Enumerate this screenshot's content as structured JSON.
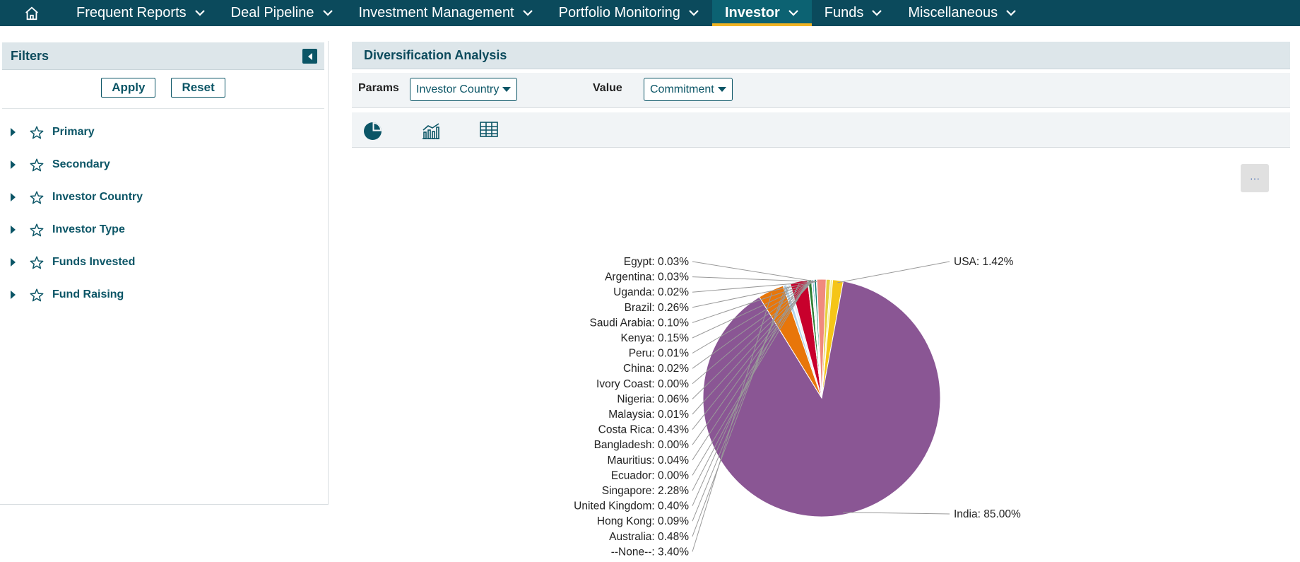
{
  "nav": {
    "items": [
      {
        "label": "Frequent Reports",
        "active": false
      },
      {
        "label": "Deal Pipeline",
        "active": false
      },
      {
        "label": "Investment Management",
        "active": false
      },
      {
        "label": "Portfolio Monitoring",
        "active": false
      },
      {
        "label": "Investor",
        "active": true
      },
      {
        "label": "Funds",
        "active": false
      },
      {
        "label": "Miscellaneous",
        "active": false
      }
    ]
  },
  "filters": {
    "title": "Filters",
    "apply_label": "Apply",
    "reset_label": "Reset",
    "items": [
      {
        "label": "Primary"
      },
      {
        "label": "Secondary"
      },
      {
        "label": "Investor Country"
      },
      {
        "label": "Investor Type"
      },
      {
        "label": "Funds Invested"
      },
      {
        "label": "Fund Raising"
      }
    ]
  },
  "analysis": {
    "title": "Diversification Analysis",
    "params_label": "Params",
    "params_value": "Investor Country",
    "value_label": "Value",
    "value_value": "Commitment",
    "menu_label": "···"
  },
  "colors": {
    "nav_bg": "#0b4a5c",
    "accent": "#f0b323",
    "brand_text": "#0b5566"
  },
  "chart_data": {
    "type": "pie",
    "title": "",
    "slices": [
      {
        "name": "USA",
        "label": "USA: 1.42%",
        "value": 1.42,
        "color": "#f5c518",
        "side": "right"
      },
      {
        "name": "India",
        "label": "India: 85.00%",
        "value": 85.0,
        "color": "#8a5694",
        "side": "right"
      },
      {
        "name": "--None--",
        "label": "--None--: 3.40%",
        "value": 3.4,
        "color": "#e8760a",
        "side": "left"
      },
      {
        "name": "Australia",
        "label": "Australia: 0.48%",
        "value": 0.48,
        "color": "#b4d4ea",
        "side": "left"
      },
      {
        "name": "Hong Kong",
        "label": "Hong Kong: 0.09%",
        "value": 0.09,
        "color": "#2b6cb0",
        "side": "left"
      },
      {
        "name": "United Kingdom",
        "label": "United Kingdom: 0.40%",
        "value": 0.4,
        "color": "#e4f0f8",
        "side": "left"
      },
      {
        "name": "Singapore",
        "label": "Singapore: 2.28%",
        "value": 2.28,
        "color": "#c8002c",
        "side": "left"
      },
      {
        "name": "Ecuador",
        "label": "Ecuador: 0.00%",
        "value": 0.0,
        "color": "#ff66aa",
        "side": "left"
      },
      {
        "name": "Mauritius",
        "label": "Mauritius: 0.04%",
        "value": 0.04,
        "color": "#f8b7c7",
        "side": "left"
      },
      {
        "name": "Bangladesh",
        "label": "Bangladesh: 0.00%",
        "value": 0.0,
        "color": "#7f7f7f",
        "side": "left"
      },
      {
        "name": "Costa Rica",
        "label": "Costa Rica: 0.43%",
        "value": 0.43,
        "color": "#2e7d32",
        "side": "left"
      },
      {
        "name": "Malaysia",
        "label": "Malaysia: 0.01%",
        "value": 0.01,
        "color": "#7f7f7f",
        "side": "left"
      },
      {
        "name": "Nigeria",
        "label": "Nigeria: 0.06%",
        "value": 0.06,
        "color": "#7f7f7f",
        "side": "left"
      },
      {
        "name": "Ivory Coast",
        "label": "Ivory Coast: 0.00%",
        "value": 0.0,
        "color": "#7f7f7f",
        "side": "left"
      },
      {
        "name": "China",
        "label": "China: 0.02%",
        "value": 0.02,
        "color": "#7f7f7f",
        "side": "left"
      },
      {
        "name": "Peru",
        "label": "Peru: 0.01%",
        "value": 0.01,
        "color": "#7f7f7f",
        "side": "left"
      },
      {
        "name": "Kenya",
        "label": "Kenya: 0.15%",
        "value": 0.15,
        "color": "#1a6fb0",
        "side": "left"
      },
      {
        "name": "Saudi Arabia",
        "label": "Saudi Arabia: 0.10%",
        "value": 0.1,
        "color": "#9ad1d4",
        "side": "left"
      },
      {
        "name": "Brazil",
        "label": "Brazil: 0.26%",
        "value": 0.26,
        "color": "#0d7d6e",
        "side": "left"
      },
      {
        "name": "Uganda",
        "label": "Uganda: 0.02%",
        "value": 0.02,
        "color": "#7f7f7f",
        "side": "left"
      },
      {
        "name": "Argentina",
        "label": "Argentina: 0.03%",
        "value": 0.03,
        "color": "#7f7f7f",
        "side": "left"
      },
      {
        "name": "Egypt",
        "label": "Egypt: 0.03%",
        "value": 0.03,
        "color": "#7f7f7f",
        "side": "left"
      }
    ],
    "filler_slices": [
      {
        "value": 1.2,
        "color": "#f08a7e"
      },
      {
        "value": 0.55,
        "color": "#e6d040"
      },
      {
        "value": 0.3,
        "color": "#f5f0a0"
      }
    ],
    "legend": "none",
    "labels": "outside-with-leader-lines"
  }
}
